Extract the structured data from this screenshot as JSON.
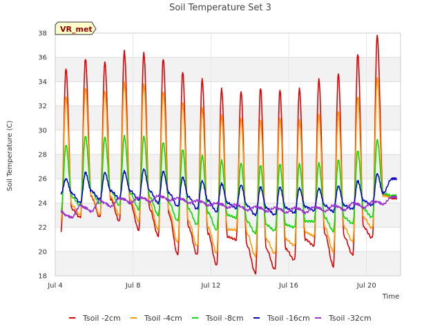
{
  "chart_data": {
    "type": "line",
    "title": "Soil Temperature Set 3",
    "xlabel": "Time",
    "ylabel": "Soil Temperature (C)",
    "badge": "VR_met",
    "xlim": [
      4.0,
      21.75
    ],
    "ylim": [
      18,
      38
    ],
    "x_ticks": [
      {
        "value": 4,
        "label": "Jul 4"
      },
      {
        "value": 8,
        "label": "Jul 8"
      },
      {
        "value": 12,
        "label": "Jul 12"
      },
      {
        "value": 16,
        "label": "Jul 16"
      },
      {
        "value": 20,
        "label": "Jul 20"
      }
    ],
    "y_ticks": [
      18,
      20,
      22,
      24,
      26,
      28,
      30,
      32,
      34,
      36,
      38
    ],
    "grid": true,
    "legend_position": "bottom",
    "x_unit": "day of July",
    "series": [
      {
        "name": "Tsoil -2cm",
        "color": "#dd0000",
        "lag": 0,
        "x": [
          4.3,
          4.55,
          4.85,
          5.3,
          5.55,
          5.85,
          6.3,
          6.55,
          6.85,
          7.3,
          7.55,
          7.85,
          8.3,
          8.55,
          8.85,
          9.3,
          9.55,
          9.85,
          10.3,
          10.55,
          10.85,
          11.3,
          11.55,
          11.85,
          12.3,
          12.55,
          12.85,
          13.3,
          13.55,
          13.85,
          14.3,
          14.55,
          14.85,
          15.3,
          15.55,
          15.85,
          16.3,
          16.55,
          16.85,
          17.3,
          17.55,
          17.85,
          18.3,
          18.55,
          18.85,
          19.3,
          19.55,
          19.85,
          20.3,
          20.55,
          20.85,
          21.3,
          21.55
        ],
        "y": [
          21.7,
          35.1,
          23.5,
          22.8,
          35.9,
          24.5,
          22.8,
          35.6,
          24.3,
          22.5,
          36.5,
          24.0,
          21.8,
          36.4,
          23.5,
          21.3,
          35.9,
          23.0,
          19.7,
          34.8,
          22.0,
          19.7,
          34.2,
          21.5,
          18.9,
          33.4,
          21.2,
          21.0,
          33.2,
          20.5,
          18.2,
          33.5,
          20.2,
          18.5,
          33.3,
          20.2,
          19.3,
          33.4,
          21.0,
          20.5,
          34.2,
          21.5,
          18.8,
          34.7,
          21.2,
          19.7,
          36.3,
          22.0,
          21.1,
          37.8,
          24.8,
          24.4,
          24.4
        ]
      },
      {
        "name": "Tsoil -4cm",
        "color": "#ff9900",
        "lag": 0.05,
        "x": [
          4.3,
          4.55,
          4.85,
          5.3,
          5.55,
          5.85,
          6.3,
          6.55,
          6.85,
          7.3,
          7.55,
          7.85,
          8.3,
          8.55,
          8.85,
          9.3,
          9.55,
          9.85,
          10.3,
          10.55,
          10.85,
          11.3,
          11.55,
          11.85,
          12.3,
          12.55,
          12.85,
          13.3,
          13.55,
          13.85,
          14.3,
          14.55,
          14.85,
          15.3,
          15.55,
          15.85,
          16.3,
          16.55,
          16.85,
          17.3,
          17.55,
          17.85,
          18.3,
          18.55,
          18.85,
          19.3,
          19.55,
          19.85,
          20.3,
          20.55,
          20.85,
          21.3,
          21.55
        ],
        "y": [
          22.6,
          32.8,
          23.8,
          23.0,
          33.5,
          24.6,
          23.0,
          33.2,
          24.5,
          23.0,
          33.9,
          24.3,
          22.5,
          33.8,
          24.0,
          21.8,
          33.2,
          23.3,
          20.7,
          32.3,
          22.5,
          20.4,
          31.8,
          22.0,
          19.9,
          31.2,
          21.8,
          21.8,
          31.0,
          21.5,
          19.6,
          30.9,
          21.0,
          19.8,
          31.0,
          21.0,
          20.5,
          30.8,
          21.6,
          21.3,
          31.3,
          22.0,
          20.0,
          31.6,
          22.0,
          20.8,
          32.8,
          22.8,
          21.9,
          34.3,
          24.6,
          24.5,
          24.6
        ]
      },
      {
        "name": "Tsoil -8cm",
        "color": "#00dd00",
        "lag": 0.15,
        "x": [
          4.3,
          4.55,
          4.85,
          5.3,
          5.55,
          5.85,
          6.3,
          6.55,
          6.85,
          7.3,
          7.55,
          7.85,
          8.3,
          8.55,
          8.85,
          9.3,
          9.55,
          9.85,
          10.3,
          10.55,
          10.85,
          11.3,
          11.55,
          11.85,
          12.3,
          12.55,
          12.85,
          13.3,
          13.55,
          13.85,
          14.3,
          14.55,
          14.85,
          15.3,
          15.55,
          15.85,
          16.3,
          16.55,
          16.85,
          17.3,
          17.55,
          17.85,
          18.3,
          18.55,
          18.85,
          19.3,
          19.55,
          19.85,
          20.3,
          20.55,
          20.85,
          21.3,
          21.55
        ],
        "y": [
          23.3,
          28.8,
          24.5,
          23.8,
          29.5,
          25.0,
          23.9,
          29.4,
          25.0,
          23.8,
          29.5,
          24.8,
          23.5,
          29.5,
          24.5,
          23.0,
          29.0,
          24.0,
          22.5,
          28.4,
          23.5,
          22.2,
          27.9,
          23.2,
          21.8,
          27.5,
          23.0,
          22.8,
          27.3,
          22.5,
          21.5,
          27.1,
          22.2,
          21.7,
          27.2,
          22.2,
          22.0,
          27.2,
          22.5,
          22.5,
          27.3,
          22.8,
          21.7,
          27.6,
          22.8,
          22.3,
          28.3,
          23.5,
          22.8,
          29.2,
          24.8,
          24.6,
          24.6
        ]
      },
      {
        "name": "Tsoil -16cm",
        "color": "#0000cc",
        "lag": 0.35,
        "x": [
          4.3,
          4.55,
          4.85,
          5.3,
          5.55,
          5.85,
          6.3,
          6.55,
          6.85,
          7.3,
          7.55,
          7.85,
          8.3,
          8.55,
          8.85,
          9.3,
          9.55,
          9.85,
          10.3,
          10.55,
          10.85,
          11.3,
          11.55,
          11.85,
          12.3,
          12.55,
          12.85,
          13.3,
          13.55,
          13.85,
          14.3,
          14.55,
          14.85,
          15.3,
          15.55,
          15.85,
          16.3,
          16.55,
          16.85,
          17.3,
          17.55,
          17.85,
          18.3,
          18.55,
          18.85,
          19.3,
          19.55,
          19.85,
          20.3,
          20.55,
          20.85,
          21.3,
          21.55
        ],
        "y": [
          24.8,
          26.0,
          24.8,
          24.0,
          26.5,
          25.0,
          24.3,
          26.5,
          25.0,
          24.4,
          26.6,
          25.0,
          24.3,
          26.8,
          25.0,
          24.0,
          26.6,
          24.8,
          23.7,
          26.1,
          24.5,
          23.5,
          25.8,
          24.2,
          23.3,
          25.6,
          24.0,
          23.6,
          25.5,
          23.8,
          23.0,
          25.3,
          23.6,
          23.0,
          25.3,
          23.6,
          23.2,
          25.2,
          23.7,
          23.4,
          25.2,
          23.8,
          23.3,
          25.4,
          23.8,
          23.5,
          25.8,
          24.2,
          23.8,
          26.4,
          24.8,
          26.0,
          26.0
        ]
      },
      {
        "name": "Tsoil -32cm",
        "color": "#9933cc",
        "lag": 0.9,
        "x": [
          4.3,
          4.55,
          4.85,
          5.3,
          5.55,
          5.85,
          6.3,
          6.55,
          6.85,
          7.3,
          7.55,
          7.85,
          8.3,
          8.55,
          8.85,
          9.3,
          9.55,
          9.85,
          10.3,
          10.55,
          10.85,
          11.3,
          11.55,
          11.85,
          12.3,
          12.55,
          12.85,
          13.3,
          13.55,
          13.85,
          14.3,
          14.55,
          14.85,
          15.3,
          15.55,
          15.85,
          16.3,
          16.55,
          16.85,
          17.3,
          17.55,
          17.85,
          18.3,
          18.55,
          18.85,
          19.3,
          19.55,
          19.85,
          20.3,
          20.55,
          20.85,
          21.3,
          21.55
        ],
        "y": [
          23.3,
          23.0,
          22.8,
          23.8,
          23.6,
          23.3,
          24.2,
          24.0,
          23.7,
          24.4,
          24.3,
          24.0,
          24.5,
          24.4,
          24.1,
          24.6,
          24.5,
          24.2,
          24.4,
          24.3,
          24.0,
          24.2,
          24.1,
          23.8,
          24.0,
          23.9,
          23.6,
          23.9,
          23.7,
          23.4,
          23.7,
          23.6,
          23.3,
          23.6,
          23.5,
          23.2,
          23.6,
          23.5,
          23.2,
          23.7,
          23.6,
          23.3,
          23.8,
          23.7,
          23.4,
          24.0,
          23.9,
          23.6,
          24.1,
          24.1,
          23.9,
          24.5,
          24.5
        ]
      }
    ]
  }
}
